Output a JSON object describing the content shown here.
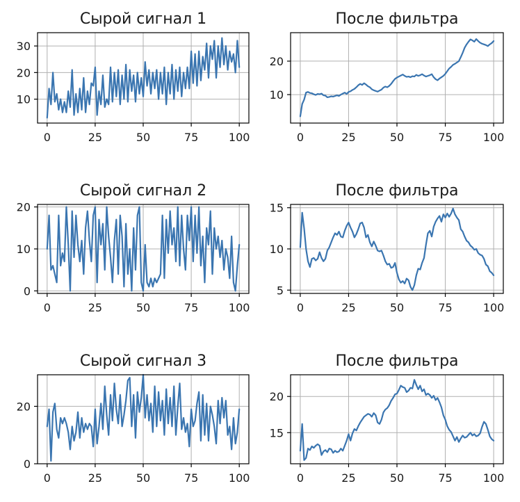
{
  "chart_data": [
    {
      "type": "line",
      "title": "Сырой сигнал 1",
      "xlim": [
        0,
        100
      ],
      "ylim": [
        1,
        35
      ],
      "x_ticks": [
        0,
        25,
        50,
        75,
        100
      ],
      "y_ticks": [
        10,
        20,
        30
      ],
      "grid": true,
      "color": "#3a75b0",
      "series": [
        {
          "values": [
            3,
            14,
            8,
            20,
            9,
            12,
            6,
            10,
            5,
            9,
            5,
            13,
            7,
            21,
            4,
            12,
            5,
            14,
            6,
            18,
            5,
            13,
            8,
            16,
            15,
            22,
            4,
            13,
            8,
            19,
            7,
            10,
            8,
            22,
            9,
            20,
            11,
            21,
            8,
            19,
            10,
            23,
            9,
            21,
            13,
            19,
            9,
            20,
            12,
            18,
            11,
            24,
            15,
            21,
            12,
            20,
            14,
            21,
            10,
            20,
            12,
            22,
            8,
            20,
            12,
            23,
            10,
            21,
            13,
            22,
            11,
            20,
            14,
            22,
            14,
            28,
            16,
            27,
            15,
            28,
            17,
            26,
            21,
            31,
            18,
            30,
            25,
            32,
            18,
            30,
            22,
            33,
            23,
            30,
            21,
            28,
            24,
            27,
            20,
            32,
            22
          ]
        }
      ]
    },
    {
      "type": "line",
      "title": "После фильтра",
      "xlim": [
        0,
        100
      ],
      "ylim": [
        1.5,
        28.5
      ],
      "x_ticks": [
        0,
        25,
        50,
        75,
        100
      ],
      "y_ticks": [
        10,
        20
      ],
      "grid": true,
      "color": "#3a75b0",
      "series": [
        {
          "values": [
            3.5,
            7.2,
            8.5,
            10.6,
            10.8,
            10.5,
            10.4,
            10.1,
            9.9,
            10.2,
            10.1,
            10.3,
            9.8,
            9.7,
            9.2,
            9.3,
            9.5,
            9.4,
            9.6,
            9.8,
            9.6,
            10,
            10.3,
            10.6,
            10.2,
            10.8,
            11,
            11.4,
            11.7,
            12.2,
            12.8,
            13.2,
            12.9,
            13.4,
            13,
            12.5,
            12.2,
            11.6,
            11.3,
            11.1,
            10.9,
            11.2,
            11.5,
            12.1,
            12.4,
            12.2,
            12.6,
            13.2,
            14,
            14.7,
            15.1,
            15.4,
            15.7,
            16,
            15.6,
            15.3,
            15.4,
            15.2,
            15.5,
            15.4,
            15.9,
            15.6,
            15.8,
            16.1,
            15.7,
            15.4,
            15.6,
            15.8,
            16.1,
            15.2,
            14.6,
            14.3,
            14.8,
            15.2,
            15.6,
            16.2,
            17,
            17.8,
            18.3,
            18.9,
            19.2,
            19.6,
            20,
            21.2,
            22.5,
            24,
            25,
            25.8,
            26.5,
            26.2,
            25.8,
            26.6,
            26,
            25.5,
            25.2,
            25,
            24.8,
            24.5,
            25,
            25.4,
            26
          ]
        }
      ]
    },
    {
      "type": "line",
      "title": "Сырой сигнал 2",
      "xlim": [
        0,
        100
      ],
      "ylim": [
        -0.6,
        20.6
      ],
      "x_ticks": [
        0,
        25,
        50,
        75,
        100
      ],
      "y_ticks": [
        0,
        10,
        20
      ],
      "grid": true,
      "color": "#3a75b0",
      "series": [
        {
          "values": [
            10,
            18,
            5,
            6,
            4,
            2,
            18,
            6,
            9,
            7,
            20,
            11,
            0,
            19,
            8,
            18,
            11,
            7,
            12,
            4,
            15,
            19,
            12,
            7,
            18,
            20,
            2,
            17,
            11,
            16,
            5,
            20,
            13,
            8,
            2,
            12,
            17,
            4,
            18,
            13,
            1,
            16,
            4,
            10,
            0,
            15,
            5,
            18,
            20,
            2,
            0,
            11,
            2,
            1,
            3,
            1,
            3,
            2,
            3,
            4,
            18,
            3,
            17,
            9,
            19,
            11,
            15,
            7,
            20,
            6,
            18,
            10,
            5,
            18,
            12,
            20,
            7,
            18,
            9,
            20,
            6,
            13,
            2,
            15,
            11,
            19,
            4,
            15,
            10,
            13,
            8,
            12,
            5,
            10,
            8,
            3,
            13,
            2,
            0,
            6,
            11
          ]
        }
      ]
    },
    {
      "type": "line",
      "title": "После фильтра",
      "xlim": [
        0,
        100
      ],
      "ylim": [
        4.6,
        15.4
      ],
      "x_ticks": [
        0,
        25,
        50,
        75,
        100
      ],
      "y_ticks": [
        5,
        10,
        15
      ],
      "grid": true,
      "color": "#3a75b0",
      "series": [
        {
          "values": [
            10.2,
            14.4,
            12.5,
            10,
            8.5,
            7.8,
            8.8,
            8.9,
            8.6,
            8.8,
            9.6,
            8.9,
            8.5,
            8.8,
            9.8,
            10.2,
            10.8,
            11.4,
            11.9,
            11.7,
            12.1,
            11.5,
            11.4,
            12.2,
            12.8,
            13.2,
            12.6,
            12.1,
            11.4,
            11.8,
            12.4,
            13.1,
            13.2,
            12.6,
            11.4,
            11.7,
            10.8,
            10.3,
            10.9,
            10.4,
            9.8,
            9.7,
            9.8,
            9.2,
            8.5,
            8.1,
            8.2,
            7.7,
            7.8,
            8.3,
            7.1,
            6.3,
            5.9,
            6.1,
            5.8,
            6.4,
            6.2,
            5.4,
            5.0,
            5.6,
            6.8,
            7.6,
            7.5,
            8.3,
            8.9,
            10.5,
            11.9,
            12.2,
            11.5,
            12.7,
            13.3,
            13.7,
            14.0,
            13.3,
            14.2,
            13.8,
            14.3,
            13.9,
            14.3,
            14.9,
            14.2,
            13.8,
            13.5,
            12.4,
            12.1,
            11.5,
            11.0,
            10.8,
            10.4,
            10.2,
            9.9,
            10.0,
            9.5,
            9.3,
            9.2,
            8.8,
            8.1,
            7.9,
            7.3,
            7.1,
            6.8
          ]
        }
      ]
    },
    {
      "type": "line",
      "title": "Сырой сигнал 3",
      "xlim": [
        0,
        100
      ],
      "ylim": [
        0,
        31
      ],
      "x_ticks": [
        0,
        25,
        50,
        75,
        100
      ],
      "y_ticks": [
        0,
        20
      ],
      "grid": true,
      "color": "#3a75b0",
      "series": [
        {
          "values": [
            13,
            19,
            1,
            18,
            21,
            12,
            9,
            16,
            14,
            16,
            14,
            11,
            5,
            13,
            8,
            11,
            18,
            9,
            16,
            11,
            14,
            12,
            14,
            13,
            6,
            19,
            7,
            13,
            21,
            12,
            27,
            17,
            10,
            24,
            15,
            28,
            19,
            14,
            24,
            13,
            17,
            22,
            29,
            30,
            13,
            24,
            9,
            25,
            18,
            23,
            31,
            16,
            24,
            15,
            21,
            11,
            27,
            13,
            25,
            15,
            22,
            10,
            26,
            14,
            23,
            13,
            27,
            10,
            20,
            28,
            12,
            16,
            11,
            14,
            6,
            19,
            13,
            15,
            21,
            25,
            8,
            24,
            10,
            21,
            8,
            20,
            17,
            13,
            7,
            22,
            14,
            23,
            16,
            22,
            10,
            13,
            5,
            16,
            7,
            11,
            19
          ]
        }
      ]
    },
    {
      "type": "line",
      "title": "После фильтра",
      "xlim": [
        0,
        100
      ],
      "ylim": [
        10.7,
        23
      ],
      "x_ticks": [
        0,
        25,
        50,
        75,
        100
      ],
      "y_ticks": [
        15,
        20
      ],
      "grid": true,
      "color": "#3a75b0",
      "series": [
        {
          "values": [
            12.5,
            16.2,
            11.2,
            11.5,
            12.8,
            12.6,
            13.1,
            12.9,
            13.2,
            13.4,
            13.2,
            11.9,
            12.4,
            12.6,
            12.3,
            12.8,
            12.7,
            12.2,
            12.5,
            12.3,
            12.4,
            12.8,
            12.5,
            13.2,
            13.9,
            14.8,
            13.9,
            14.9,
            15.5,
            15.3,
            15.9,
            16.4,
            16.8,
            17.2,
            17.4,
            17.6,
            17.5,
            17.2,
            17.7,
            17.4,
            16.4,
            16.2,
            16.8,
            17.8,
            18.2,
            18.4,
            18.8,
            19.4,
            19.8,
            20.3,
            20.4,
            20.9,
            21.5,
            21.3,
            21.2,
            20.6,
            20.8,
            21.2,
            21.1,
            22.3,
            21.6,
            21,
            21.5,
            20.7,
            21,
            20.2,
            20.4,
            20.2,
            19.8,
            20.1,
            19.5,
            19.8,
            19.2,
            18.5,
            17.4,
            16.8,
            15.9,
            15.4,
            15.1,
            14.5,
            13.9,
            14.4,
            13.7,
            14.2,
            14.6,
            14.3,
            14.4,
            14.7,
            15,
            14.6,
            14.8,
            14.5,
            14.6,
            14.9,
            15.8,
            16.5,
            16.2,
            15.4,
            14.5,
            14.1,
            13.9
          ]
        }
      ]
    }
  ]
}
